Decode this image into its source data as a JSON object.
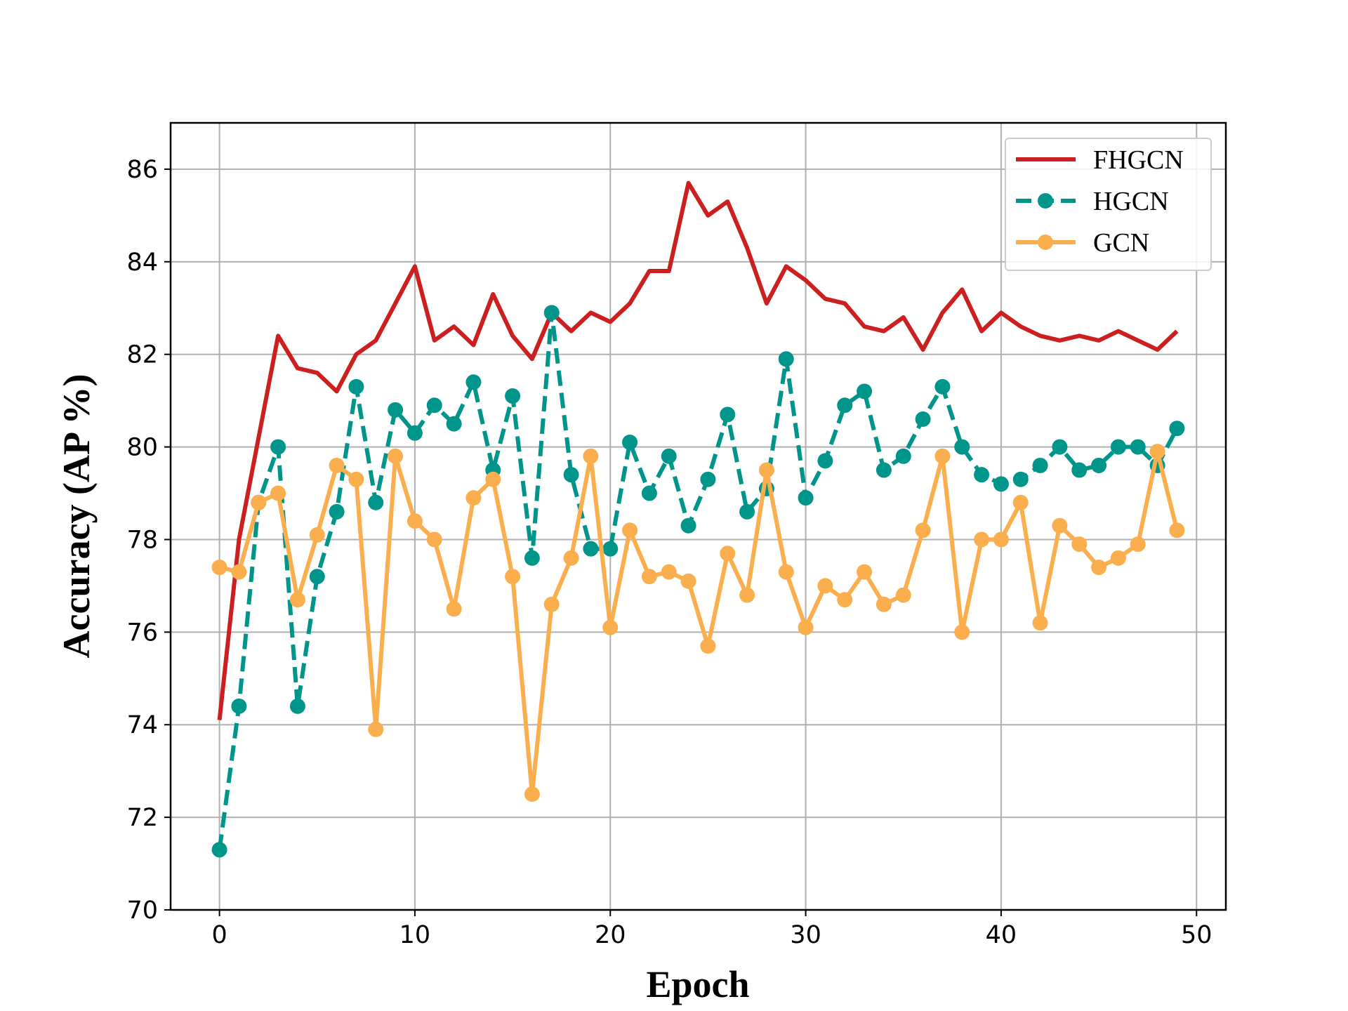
{
  "chart_data": {
    "type": "line",
    "title": "",
    "xlabel": "Epoch",
    "ylabel": "Accuracy (AP %)",
    "xlim": [
      -2.5,
      51.5
    ],
    "ylim": [
      70,
      87
    ],
    "xticks": [
      0,
      10,
      20,
      30,
      40,
      50
    ],
    "yticks": [
      70,
      72,
      74,
      76,
      78,
      80,
      82,
      84,
      86
    ],
    "grid": true,
    "legend": {
      "position": "top-right"
    },
    "x": [
      0,
      1,
      2,
      3,
      4,
      5,
      6,
      7,
      8,
      9,
      10,
      11,
      12,
      13,
      14,
      15,
      16,
      17,
      18,
      19,
      20,
      21,
      22,
      23,
      24,
      25,
      26,
      27,
      28,
      29,
      30,
      31,
      32,
      33,
      34,
      35,
      36,
      37,
      38,
      39,
      40,
      41,
      42,
      43,
      44,
      45,
      46,
      47,
      48,
      49
    ],
    "series": [
      {
        "name": "FHGCN",
        "color": "#cc1f1f",
        "style": "solid",
        "marker": "none",
        "values": [
          74.1,
          78.0,
          80.2,
          82.4,
          81.7,
          81.6,
          81.2,
          82.0,
          82.3,
          83.1,
          83.9,
          82.3,
          82.6,
          82.2,
          83.3,
          82.4,
          81.9,
          82.9,
          82.5,
          82.9,
          82.7,
          83.1,
          83.8,
          83.8,
          85.7,
          85.0,
          85.3,
          84.3,
          83.1,
          83.9,
          83.6,
          83.2,
          83.1,
          82.6,
          82.5,
          82.8,
          82.1,
          82.9,
          83.4,
          82.5,
          82.9,
          82.6,
          82.4,
          82.3,
          82.4,
          82.3,
          82.5,
          82.3,
          82.1,
          82.5
        ]
      },
      {
        "name": "HGCN",
        "color": "#00958a",
        "style": "dashed",
        "marker": "circle",
        "values": [
          71.3,
          74.4,
          78.8,
          80.0,
          74.4,
          77.2,
          78.6,
          81.3,
          78.8,
          80.8,
          80.3,
          80.9,
          80.5,
          81.4,
          79.5,
          81.1,
          77.6,
          82.9,
          79.4,
          77.8,
          77.8,
          80.1,
          79.0,
          79.8,
          78.3,
          79.3,
          80.7,
          78.6,
          79.1,
          81.9,
          78.9,
          79.7,
          80.9,
          81.2,
          79.5,
          79.8,
          80.6,
          81.3,
          80.0,
          79.4,
          79.2,
          79.3,
          79.6,
          80.0,
          79.5,
          79.6,
          80.0,
          80.0,
          79.6,
          80.4
        ]
      },
      {
        "name": "GCN",
        "color": "#fbae4e",
        "style": "solid",
        "marker": "circle",
        "values": [
          77.4,
          77.3,
          78.8,
          79.0,
          76.7,
          78.1,
          79.6,
          79.3,
          73.9,
          79.8,
          78.4,
          78.0,
          76.5,
          78.9,
          79.3,
          77.2,
          72.5,
          76.6,
          77.6,
          79.8,
          76.1,
          78.2,
          77.2,
          77.3,
          77.1,
          75.7,
          77.7,
          76.8,
          79.5,
          77.3,
          76.1,
          77.0,
          76.7,
          77.3,
          76.6,
          76.8,
          78.2,
          79.8,
          76.0,
          78.0,
          78.0,
          78.8,
          76.2,
          78.3,
          77.9,
          77.4,
          77.6,
          77.9,
          79.9,
          78.2
        ]
      }
    ]
  }
}
